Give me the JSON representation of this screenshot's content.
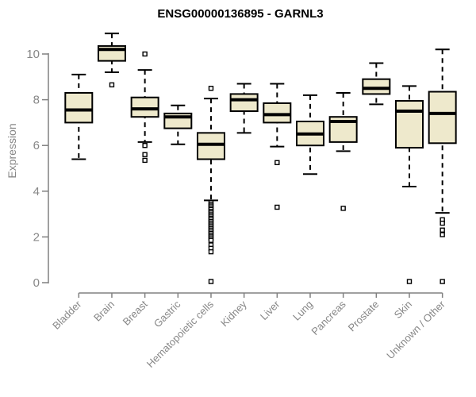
{
  "chart_data": {
    "type": "boxplot",
    "title": "ENSG00000136895 - GARNL3",
    "xlabel": "",
    "ylabel": "Expression",
    "ylim": [
      0,
      10
    ],
    "y_ticks": [
      0,
      2,
      4,
      6,
      8,
      10
    ],
    "grid": "off",
    "legend": "none",
    "style": {
      "box_fill": "#EEE9CC",
      "box_stroke": "#000000",
      "median_color": "#000000",
      "whisker_color": "#000000",
      "outlier_fill": "#ffffff",
      "outlier_stroke": "#000000",
      "axis_color": "#808080",
      "tick_label_color": "#878787",
      "title_color": "#000000",
      "background": "#ffffff"
    },
    "categories": [
      "Bladder",
      "Brain",
      "Breast",
      "Gastric",
      "Hematopoietic cells",
      "Kidney",
      "Liver",
      "Lung",
      "Pancreas",
      "Prostate",
      "Skin",
      "Unknown / Other"
    ],
    "boxes": [
      {
        "category": "Bladder",
        "low": 5.4,
        "q1": 7.0,
        "median": 7.55,
        "q3": 8.3,
        "high": 9.1,
        "outliers": []
      },
      {
        "category": "Brain",
        "low": 9.2,
        "q1": 9.7,
        "median": 10.2,
        "q3": 10.35,
        "high": 10.9,
        "outliers": [
          8.65
        ]
      },
      {
        "category": "Breast",
        "low": 6.15,
        "q1": 7.25,
        "median": 7.6,
        "q3": 8.1,
        "high": 9.3,
        "outliers": [
          10.0,
          6.0,
          5.6,
          5.35
        ]
      },
      {
        "category": "Gastric",
        "low": 6.05,
        "q1": 6.75,
        "median": 7.25,
        "q3": 7.4,
        "high": 7.75,
        "outliers": []
      },
      {
        "category": "Hematopoietic cells",
        "low": 3.6,
        "q1": 5.4,
        "median": 6.05,
        "q3": 6.55,
        "high": 8.05,
        "outliers": [
          8.5,
          3.5,
          3.42,
          3.35,
          3.27,
          3.2,
          3.12,
          3.05,
          2.97,
          2.9,
          2.82,
          2.75,
          2.67,
          2.6,
          2.52,
          2.45,
          2.37,
          2.3,
          2.22,
          2.15,
          2.07,
          2.0,
          1.92,
          1.85,
          1.65,
          1.5,
          1.35,
          0.05
        ]
      },
      {
        "category": "Kidney",
        "low": 6.55,
        "q1": 7.5,
        "median": 8.0,
        "q3": 8.25,
        "high": 8.7,
        "outliers": []
      },
      {
        "category": "Liver",
        "low": 5.95,
        "q1": 7.0,
        "median": 7.35,
        "q3": 7.85,
        "high": 8.7,
        "outliers": [
          5.25,
          3.3
        ]
      },
      {
        "category": "Lung",
        "low": 4.75,
        "q1": 6.0,
        "median": 6.5,
        "q3": 7.05,
        "high": 8.2,
        "outliers": []
      },
      {
        "category": "Pancreas",
        "low": 5.75,
        "q1": 6.15,
        "median": 7.05,
        "q3": 7.25,
        "high": 8.3,
        "outliers": [
          3.25
        ]
      },
      {
        "category": "Prostate",
        "low": 7.8,
        "q1": 8.25,
        "median": 8.5,
        "q3": 8.9,
        "high": 9.6,
        "outliers": []
      },
      {
        "category": "Skin",
        "low": 4.2,
        "q1": 5.9,
        "median": 7.5,
        "q3": 7.95,
        "high": 8.6,
        "outliers": [
          0.05
        ]
      },
      {
        "category": "Unknown / Other",
        "low": 3.05,
        "q1": 6.1,
        "median": 7.4,
        "q3": 8.35,
        "high": 10.2,
        "outliers": [
          2.75,
          2.6,
          2.3,
          2.1,
          0.05
        ]
      }
    ]
  }
}
